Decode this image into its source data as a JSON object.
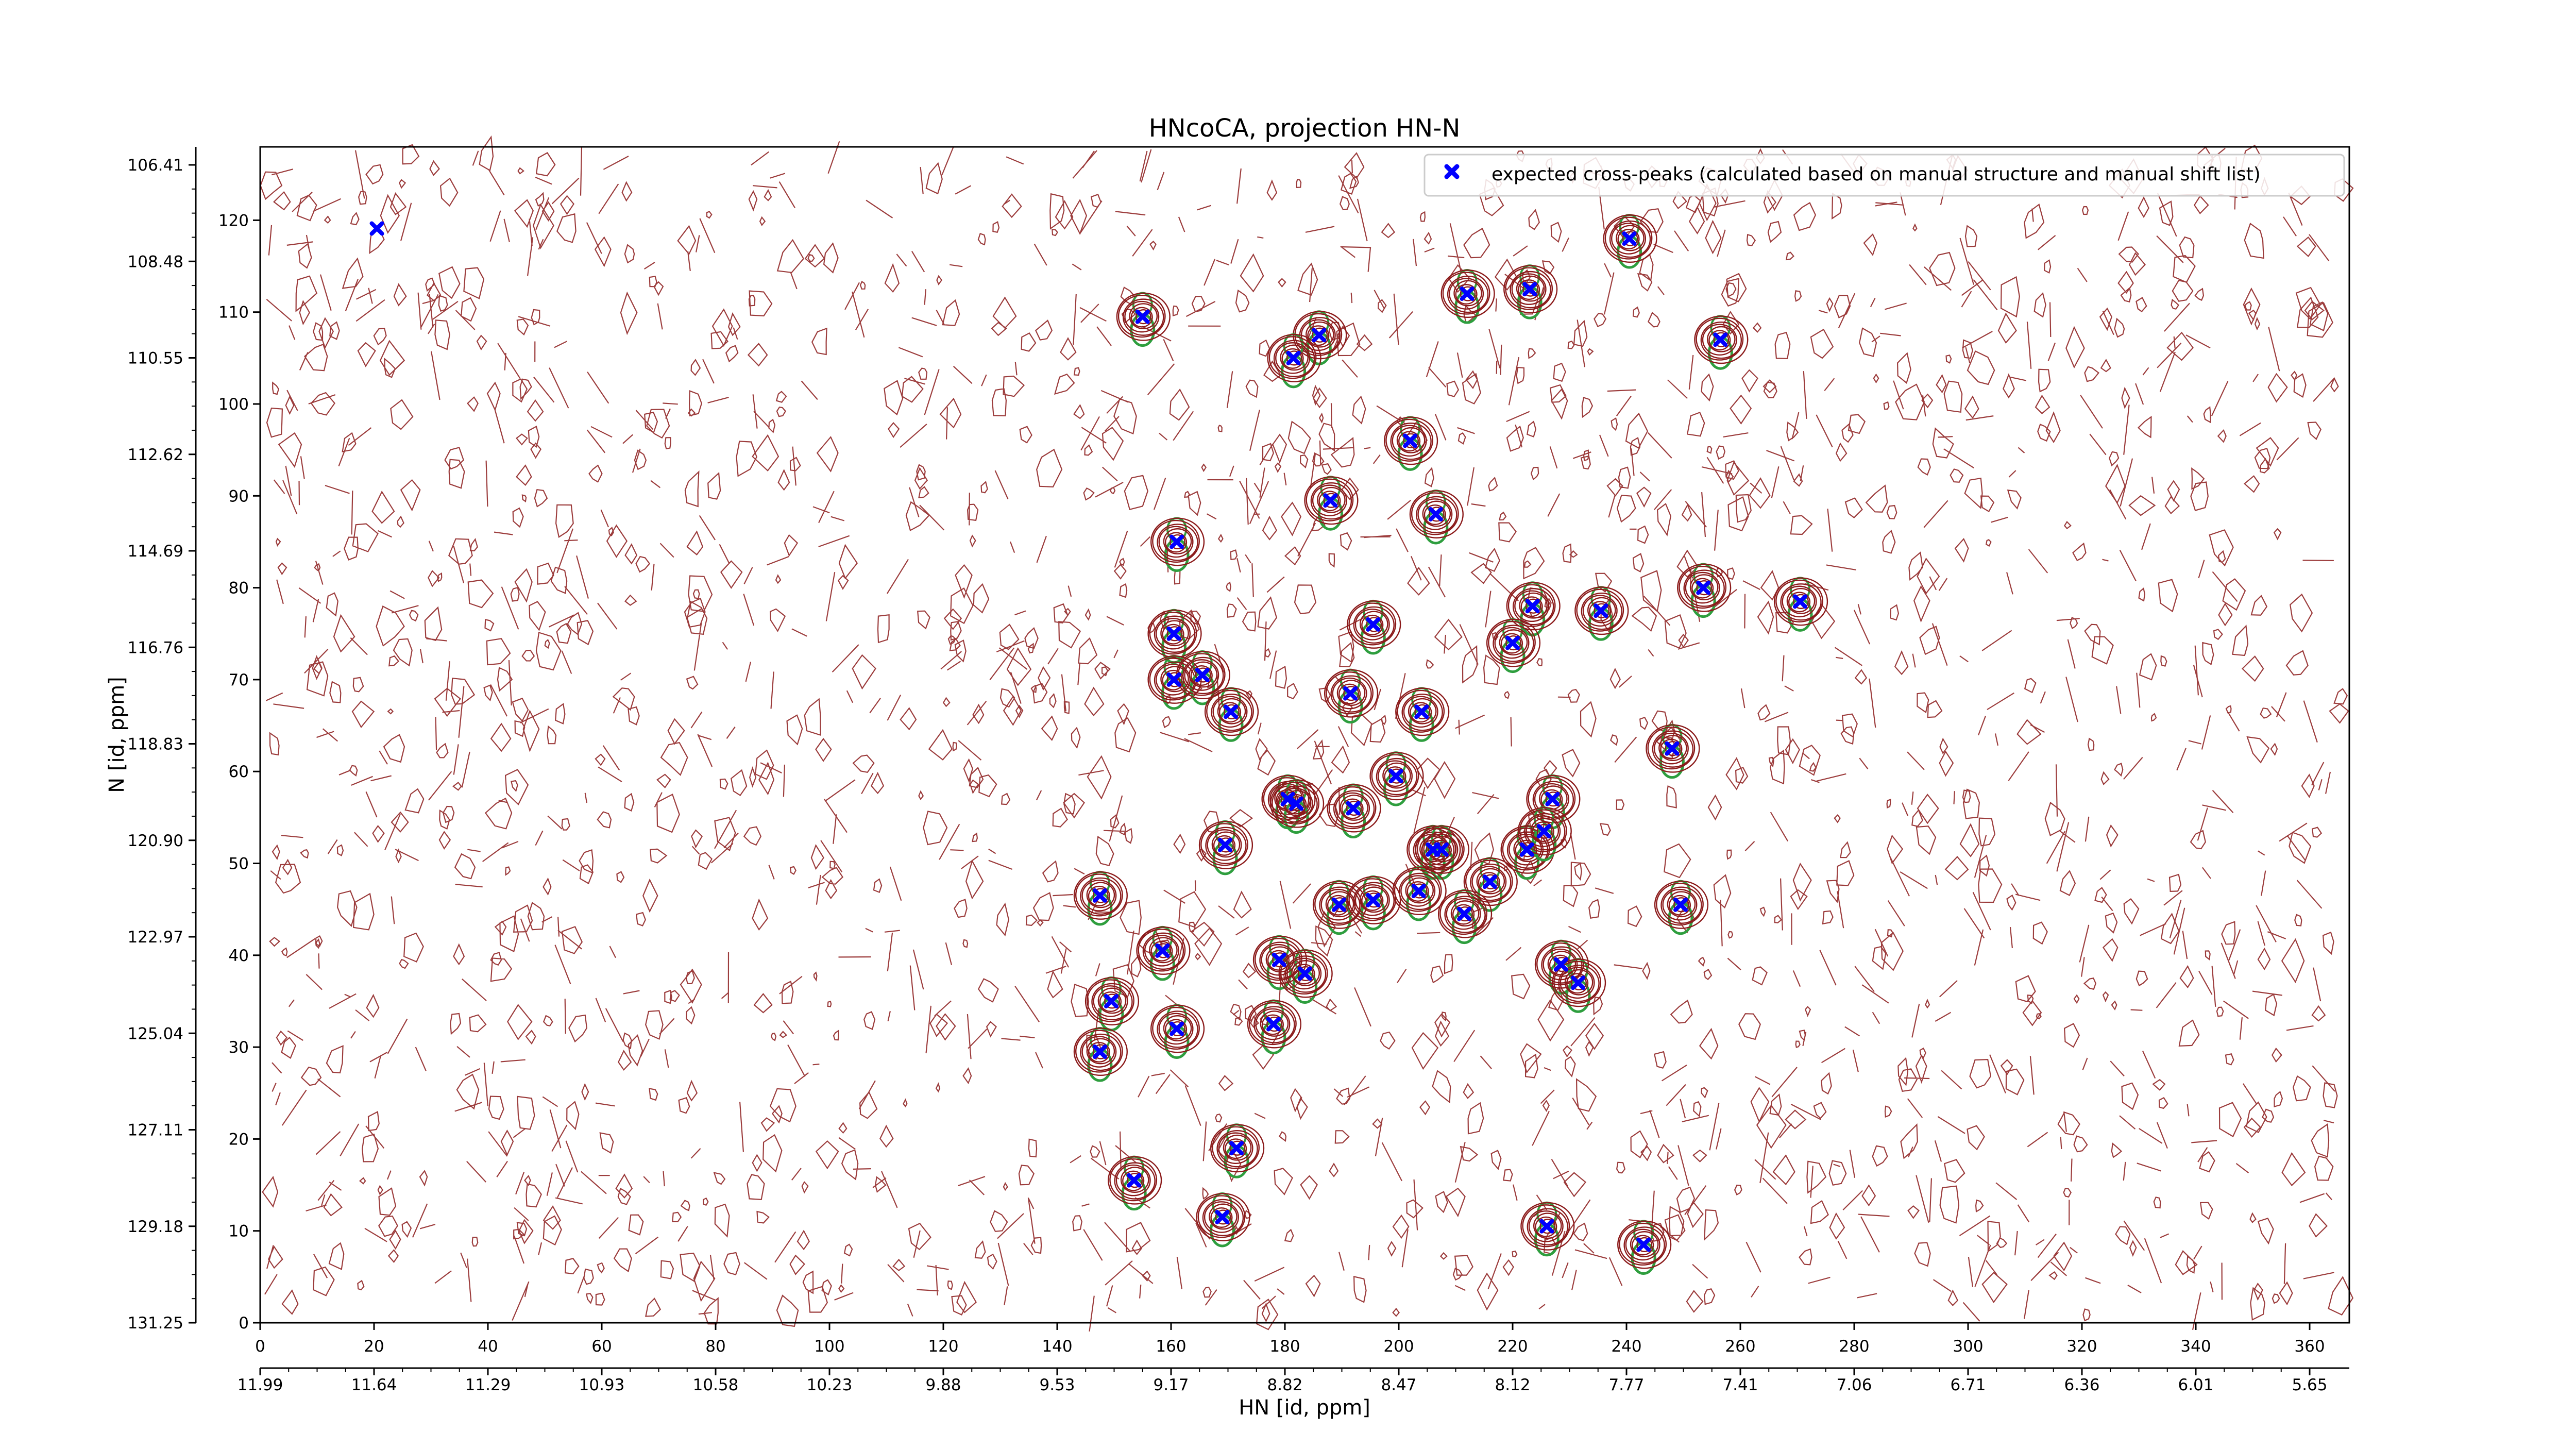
{
  "chart_data": {
    "type": "scatter",
    "title": "HNcoCA, projection HN-N",
    "xlabel": "HN [id, ppm]",
    "ylabel": "N [id, ppm]",
    "xlim": [
      0,
      367
    ],
    "ylim": [
      0,
      128
    ],
    "x_ticks": [
      0,
      20,
      40,
      60,
      80,
      100,
      120,
      140,
      160,
      180,
      200,
      220,
      240,
      260,
      280,
      300,
      320,
      340,
      360
    ],
    "y_ticks": [
      0,
      10,
      20,
      30,
      40,
      50,
      60,
      70,
      80,
      90,
      100,
      110,
      120
    ],
    "x2_tick_labels": [
      "11.99",
      "11.64",
      "11.29",
      "10.93",
      "10.58",
      "10.23",
      "9.88",
      "9.53",
      "9.17",
      "8.82",
      "8.47",
      "8.12",
      "7.77",
      "7.41",
      "7.06",
      "6.71",
      "6.36",
      "6.01",
      "5.65"
    ],
    "y2_tick_labels": [
      "131.25",
      "129.18",
      "127.11",
      "125.04",
      "122.97",
      "120.90",
      "118.83",
      "116.76",
      "114.69",
      "112.62",
      "110.55",
      "108.48",
      "106.41"
    ],
    "grid": false,
    "legend_position": "upper right",
    "colors": {
      "marker": "#0000ff",
      "contour_positive": "#8b1a1a",
      "contour_negative": "#2e9e3e",
      "axis": "#000000"
    },
    "series": [
      {
        "name": "expected cross-peaks (calculated based on manual structure and manual shift list)",
        "marker": "X",
        "points": [
          [
            20.5,
            119.1
          ],
          [
            155,
            109.5
          ],
          [
            186,
            107.5
          ],
          [
            181.5,
            105
          ],
          [
            256.5,
            107
          ],
          [
            212,
            112
          ],
          [
            223,
            112.5
          ],
          [
            240.5,
            118
          ],
          [
            202,
            96
          ],
          [
            188,
            89.5
          ],
          [
            206.5,
            88
          ],
          [
            161,
            85
          ],
          [
            160.5,
            75
          ],
          [
            195.5,
            76
          ],
          [
            223.5,
            78
          ],
          [
            220,
            74
          ],
          [
            235.5,
            77.5
          ],
          [
            253.5,
            80
          ],
          [
            270.5,
            78.5
          ],
          [
            160.5,
            70
          ],
          [
            165.5,
            70.5
          ],
          [
            170.5,
            66.5
          ],
          [
            191.5,
            68.5
          ],
          [
            204,
            66.5
          ],
          [
            248,
            62.5
          ],
          [
            199.5,
            59.5
          ],
          [
            180.5,
            57
          ],
          [
            182,
            56.5
          ],
          [
            192,
            56
          ],
          [
            227,
            57
          ],
          [
            169.5,
            52
          ],
          [
            206,
            51.5
          ],
          [
            207.5,
            51.5
          ],
          [
            222.5,
            51.5
          ],
          [
            225.5,
            53.5
          ],
          [
            216,
            48
          ],
          [
            203.5,
            47
          ],
          [
            147.5,
            46.5
          ],
          [
            189.5,
            45.5
          ],
          [
            195.5,
            46
          ],
          [
            249.5,
            45.5
          ],
          [
            211.5,
            44.5
          ],
          [
            158.5,
            40.5
          ],
          [
            179,
            39.5
          ],
          [
            183.5,
            38
          ],
          [
            228.5,
            39
          ],
          [
            231.5,
            37
          ],
          [
            149.5,
            35
          ],
          [
            161,
            32
          ],
          [
            178,
            32.5
          ],
          [
            147.5,
            29.5
          ],
          [
            171.5,
            19
          ],
          [
            153.5,
            15.5
          ],
          [
            169,
            11.5
          ],
          [
            226,
            10.5
          ],
          [
            243,
            8.5
          ]
        ]
      }
    ]
  }
}
